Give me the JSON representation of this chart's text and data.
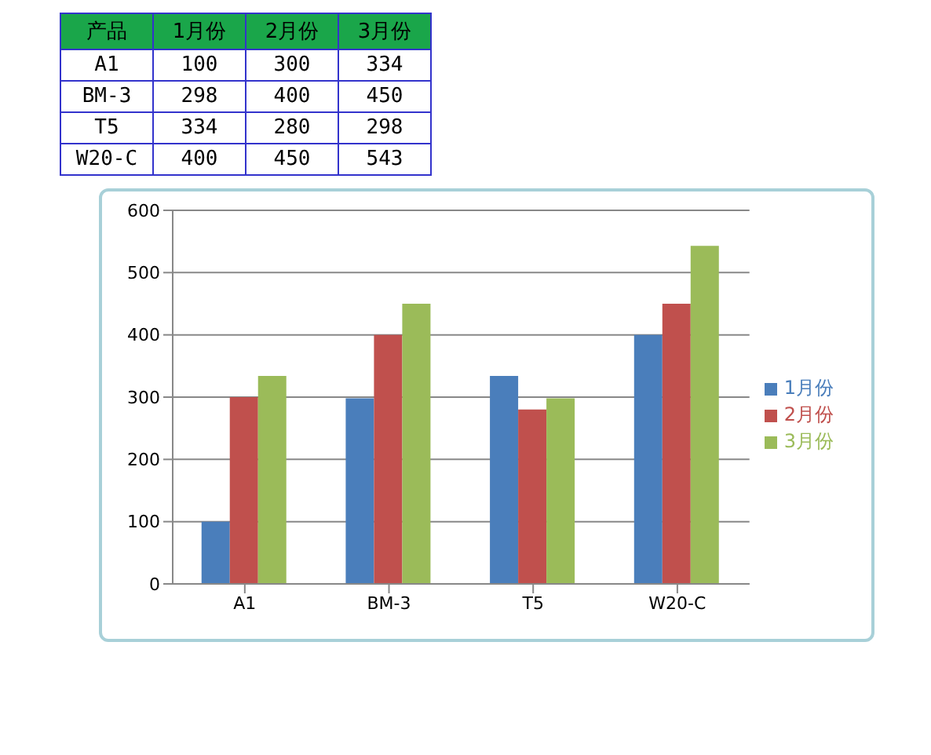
{
  "chart_data": [
    {
      "type": "heatmap",
      "annotations": [
        "产品"
      ],
      "categories": [
        "1月份",
        "2月份",
        "3月份"
      ],
      "y_categories": [
        "A1",
        "BM-3",
        "T5",
        "W20-C"
      ],
      "cells": [
        [
          100,
          300,
          334
        ],
        [
          298,
          400,
          450
        ],
        [
          334,
          280,
          298
        ],
        [
          400,
          450,
          543
        ]
      ],
      "data_labels": true
    },
    {
      "type": "bar",
      "categories": [
        "A1",
        "BM-3",
        "T5",
        "W20-C"
      ],
      "series": [
        {
          "name": "1月份",
          "color": "#4a7ebb",
          "values": [
            100,
            298,
            334,
            400
          ]
        },
        {
          "name": "2月份",
          "color": "#c0504d",
          "values": [
            300,
            400,
            280,
            450
          ]
        },
        {
          "name": "3月份",
          "color": "#9bbb59",
          "values": [
            334,
            450,
            298,
            543
          ]
        }
      ],
      "ylim": [
        0,
        600
      ],
      "yticks": [
        0,
        100,
        200,
        300,
        400,
        500,
        600
      ],
      "grid": "y",
      "legend": "right"
    }
  ]
}
